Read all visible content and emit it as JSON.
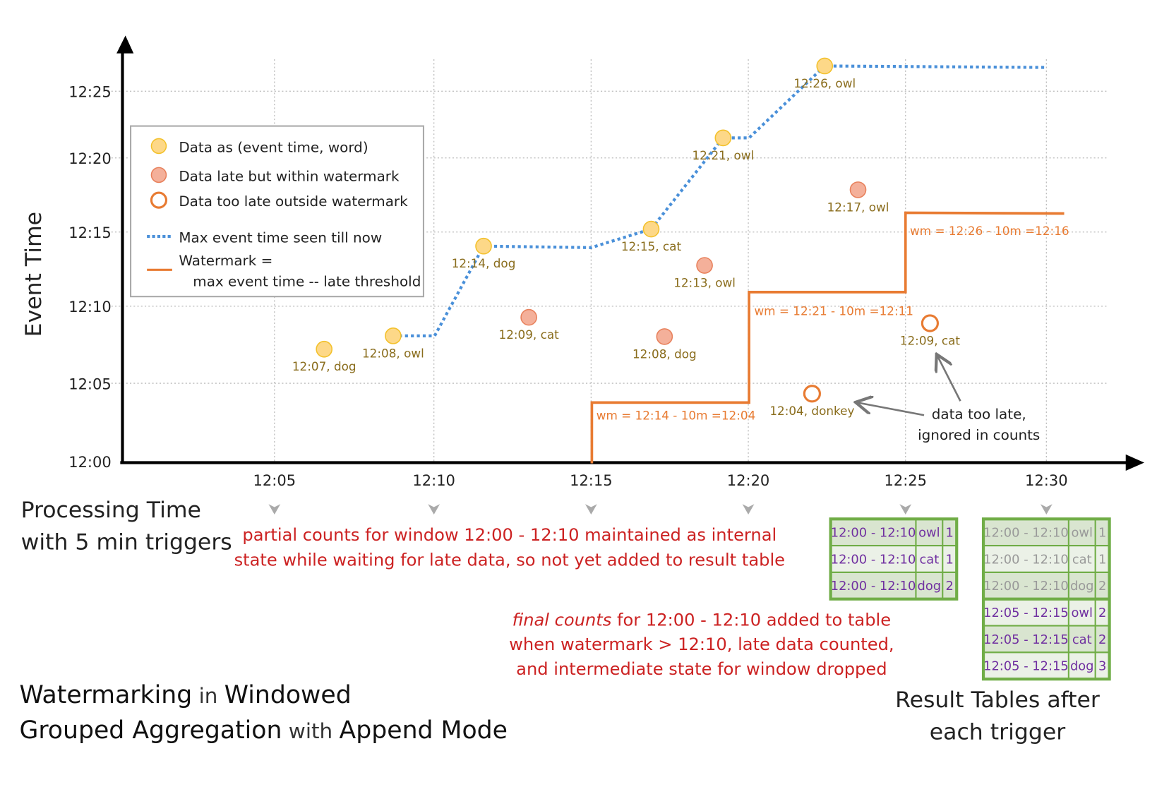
{
  "colors": {
    "data": "#fdd888",
    "data_stroke": "#f3c12c",
    "late": "#f4b09a",
    "late_stroke": "#e8815c",
    "too_late": "#e87b32",
    "max_line": "#4a90d9",
    "watermark": "#e87b32",
    "label": "#8a6d1d",
    "note": "#cc2222",
    "table_text": "#7030a0",
    "table_border": "#70ad47",
    "table_dim": "#999999"
  },
  "axes": {
    "y_title": "Event Time",
    "y_ticks": [
      "12:00",
      "12:05",
      "12:10",
      "12:15",
      "12:20",
      "12:25"
    ],
    "x_title_line1": "Processing Time",
    "x_title_line2": "with 5 min triggers",
    "x_ticks": [
      "12:05",
      "12:10",
      "12:15",
      "12:20",
      "12:25",
      "12:30"
    ]
  },
  "legend": {
    "data": "Data as (event time, word)",
    "late": "Data late but within watermark",
    "too_late": "Data too late outside watermark",
    "max": "Max event time seen till now",
    "wm_line1": "Watermark =",
    "wm_line2": "max event time -- late threshold"
  },
  "points": [
    {
      "kind": "data",
      "label": "12:07, dog",
      "processing": "12:06",
      "event": "12:07"
    },
    {
      "kind": "data",
      "label": "12:08, owl",
      "processing": "12:08",
      "event": "12:08"
    },
    {
      "kind": "data",
      "label": "12:14, dog",
      "processing": "12:11",
      "event": "12:14"
    },
    {
      "kind": "late",
      "label": "12:09, cat",
      "processing": "12:13",
      "event": "12:09"
    },
    {
      "kind": "data",
      "label": "12:15, cat",
      "processing": "12:17",
      "event": "12:15"
    },
    {
      "kind": "late",
      "label": "12:08, dog",
      "processing": "12:17",
      "event": "12:08"
    },
    {
      "kind": "late",
      "label": "12:13, owl",
      "processing": "12:18",
      "event": "12:13"
    },
    {
      "kind": "data",
      "label": "12:21, owl",
      "processing": "12:19",
      "event": "12:21"
    },
    {
      "kind": "too_late",
      "label": "12:04, donkey",
      "processing": "12:22",
      "event": "12:04"
    },
    {
      "kind": "data",
      "label": "12:26, owl",
      "processing": "12:22",
      "event": "12:26"
    },
    {
      "kind": "late",
      "label": "12:17, owl",
      "processing": "12:23",
      "event": "12:17"
    },
    {
      "kind": "too_late",
      "label": "12:09, cat",
      "processing": "12:26",
      "event": "12:09"
    }
  ],
  "watermark_labels": [
    "wm = 12:14 - 10m =12:04",
    "wm = 12:21 - 10m =12:11",
    "wm = 12:26 - 10m =12:16"
  ],
  "annotations": {
    "too_late_line1": "data too late,",
    "too_late_line2": "ignored in counts",
    "partial_line1": "partial counts for window 12:00 - 12:10 maintained as internal",
    "partial_line2": "state while waiting for late data, so not yet added  to result table",
    "final_em": "final counts",
    "final_line1_rest": " for 12:00 - 12:10 added to table",
    "final_line2": "when watermark > 12:10, late data counted,",
    "final_line3": "and intermediate state for window dropped"
  },
  "title": {
    "w1": "Watermarking",
    "w2": " in ",
    "w3": "Windowed",
    "w4": "Grouped Aggregation",
    "w5": " with ",
    "w6": "Append Mode"
  },
  "result_caption": {
    "line1": "Result Tables after",
    "line2": "each trigger"
  },
  "tables": [
    {
      "trigger": "12:25",
      "rows": [
        {
          "window": "12:00 - 12:10",
          "word": "owl",
          "count": "1",
          "dim": false
        },
        {
          "window": "12:00 - 12:10",
          "word": "cat",
          "count": "1",
          "dim": false
        },
        {
          "window": "12:00 - 12:10",
          "word": "dog",
          "count": "2",
          "dim": false
        }
      ]
    },
    {
      "trigger": "12:30",
      "rows": [
        {
          "window": "12:00 - 12:10",
          "word": "owl",
          "count": "1",
          "dim": true
        },
        {
          "window": "12:00 - 12:10",
          "word": "cat",
          "count": "1",
          "dim": true
        },
        {
          "window": "12:00 - 12:10",
          "word": "dog",
          "count": "2",
          "dim": true
        },
        {
          "window": "12:05 - 12:15",
          "word": "owl",
          "count": "2",
          "dim": false
        },
        {
          "window": "12:05 - 12:15",
          "word": "cat",
          "count": "2",
          "dim": false
        },
        {
          "window": "12:05 - 12:15",
          "word": "dog",
          "count": "3",
          "dim": false
        }
      ]
    }
  ]
}
